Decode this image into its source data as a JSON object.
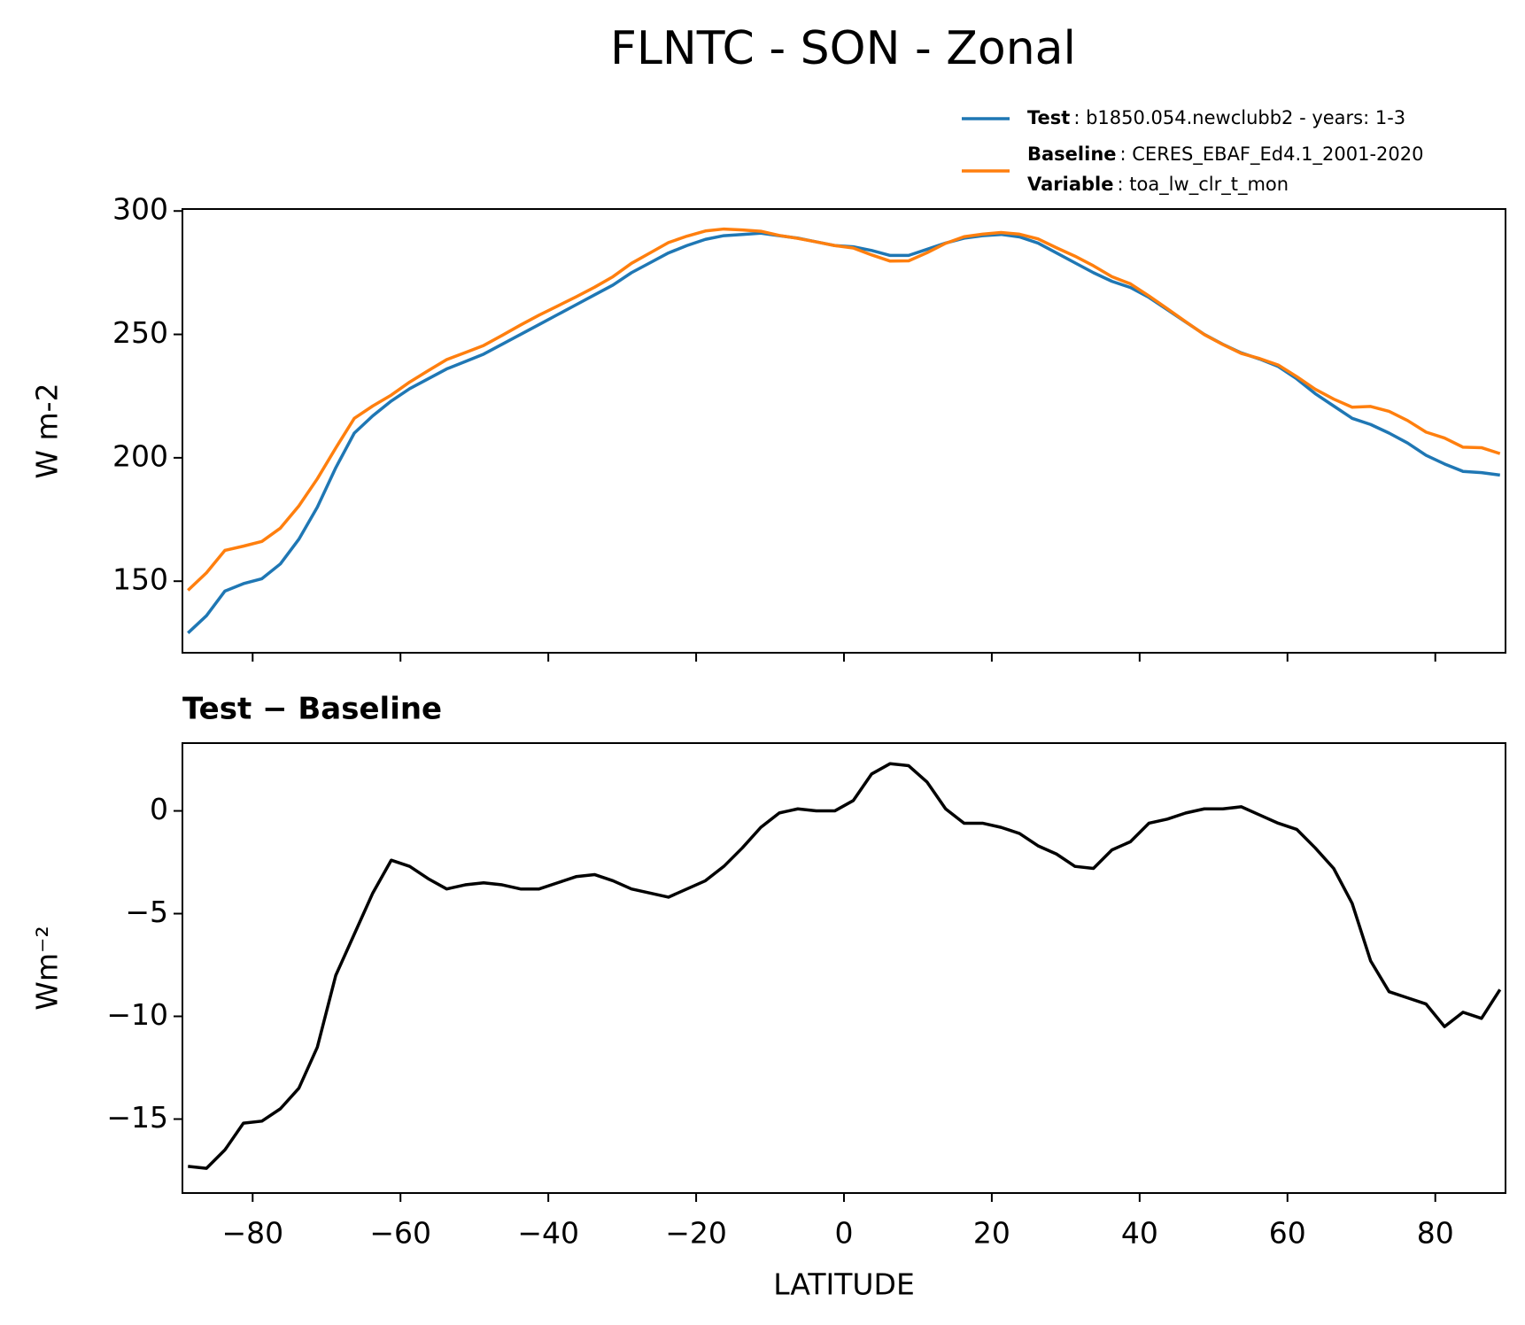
{
  "chart_data": [
    {
      "type": "line",
      "title": "FLNTC - SON - Zonal",
      "ylabel": "W m-2",
      "x": [
        -88.75,
        -86.25,
        -83.75,
        -81.25,
        -78.75,
        -76.25,
        -73.75,
        -71.25,
        -68.75,
        -66.25,
        -63.75,
        -61.25,
        -58.75,
        -56.25,
        -53.75,
        -51.25,
        -48.75,
        -46.25,
        -43.75,
        -41.25,
        -38.75,
        -36.25,
        -33.75,
        -31.25,
        -28.75,
        -26.25,
        -23.75,
        -21.25,
        -18.75,
        -16.25,
        -13.75,
        -11.25,
        -8.75,
        -6.25,
        -3.75,
        -1.25,
        1.25,
        3.75,
        6.25,
        8.75,
        11.25,
        13.75,
        16.25,
        18.75,
        21.25,
        23.75,
        26.25,
        28.75,
        31.25,
        33.75,
        36.25,
        38.75,
        41.25,
        43.75,
        46.25,
        48.75,
        51.25,
        53.75,
        56.25,
        58.75,
        61.25,
        63.75,
        66.25,
        68.75,
        71.25,
        73.75,
        76.25,
        78.75,
        81.25,
        83.75,
        86.25,
        88.75
      ],
      "series": [
        {
          "name": "Test",
          "description": ": b1850.054.newclubb2 - years: 1-3",
          "color": "#1f77b4",
          "values": [
            129,
            136,
            146,
            149,
            151,
            157,
            167,
            180,
            196,
            210,
            217,
            223,
            228,
            232,
            236,
            239,
            242,
            246,
            250,
            254,
            258,
            262,
            266,
            270,
            275,
            279,
            283,
            286,
            288.5,
            290,
            290.5,
            291,
            290,
            289,
            287.5,
            286,
            285.5,
            284,
            282,
            282,
            284.5,
            287,
            289,
            290,
            290.5,
            289.5,
            287,
            283,
            279,
            275,
            271.5,
            269,
            265,
            260,
            255,
            250,
            246,
            242.5,
            240,
            237,
            232,
            226,
            221,
            216,
            213.5,
            210,
            206,
            201,
            197.5,
            194.5,
            194,
            193
          ]
        },
        {
          "name": "Baseline",
          "description": ": CERES_EBAF_Ed4.1_2001-2020",
          "color": "#ff7f0e",
          "values": [
            146.3,
            153.4,
            162.5,
            164.2,
            166.1,
            171.5,
            180.5,
            191.5,
            204,
            216,
            221,
            225.4,
            230.7,
            235.3,
            239.8,
            242.6,
            245.5,
            249.6,
            253.8,
            257.8,
            261.5,
            265.2,
            269.1,
            273.4,
            278.8,
            283,
            287.2,
            289.8,
            291.9,
            292.7,
            292.3,
            291.8,
            290.1,
            288.9,
            287.5,
            286,
            285,
            282.2,
            279.7,
            279.8,
            283.1,
            286.9,
            289.6,
            290.6,
            291.3,
            290.6,
            288.7,
            285.1,
            281.7,
            277.8,
            273.4,
            270.5,
            265.6,
            260.4,
            255.1,
            249.9,
            245.9,
            242.3,
            240.2,
            237.6,
            232.9,
            227.8,
            223.8,
            220.5,
            220.8,
            218.8,
            215.1,
            210.4,
            208,
            204.3,
            204.1,
            201.7
          ]
        }
      ],
      "legend_note": {
        "name": "Variable",
        "description": ": toa_lw_clr_t_mon"
      },
      "legend": "upper right",
      "xlim": [
        -89.5,
        89.5
      ],
      "ylim": [
        121,
        300.8
      ],
      "xticks": [
        -80,
        -60,
        -40,
        -20,
        0,
        20,
        40,
        60,
        80
      ],
      "yticks": [
        150,
        200,
        250,
        300
      ]
    },
    {
      "type": "line",
      "title": "Test − Baseline",
      "xlabel": "LATITUDE",
      "ylabel": "Wm⁻²",
      "color": "#000000",
      "x": [
        -88.75,
        -86.25,
        -83.75,
        -81.25,
        -78.75,
        -76.25,
        -73.75,
        -71.25,
        -68.75,
        -66.25,
        -63.75,
        -61.25,
        -58.75,
        -56.25,
        -53.75,
        -51.25,
        -48.75,
        -46.25,
        -43.75,
        -41.25,
        -38.75,
        -36.25,
        -33.75,
        -31.25,
        -28.75,
        -26.25,
        -23.75,
        -21.25,
        -18.75,
        -16.25,
        -13.75,
        -11.25,
        -8.75,
        -6.25,
        -3.75,
        -1.25,
        1.25,
        3.75,
        6.25,
        8.75,
        11.25,
        13.75,
        16.25,
        18.75,
        21.25,
        23.75,
        26.25,
        28.75,
        31.25,
        33.75,
        36.25,
        38.75,
        41.25,
        43.75,
        46.25,
        48.75,
        51.25,
        53.75,
        56.25,
        58.75,
        61.25,
        63.75,
        66.25,
        68.75,
        71.25,
        73.75,
        76.25,
        78.75,
        81.25,
        83.75,
        86.25,
        88.75
      ],
      "values": [
        -17.3,
        -17.4,
        -16.5,
        -15.2,
        -15.1,
        -14.5,
        -13.5,
        -11.5,
        -8,
        -6,
        -4,
        -2.4,
        -2.7,
        -3.3,
        -3.8,
        -3.6,
        -3.5,
        -3.6,
        -3.8,
        -3.8,
        -3.5,
        -3.2,
        -3.1,
        -3.4,
        -3.8,
        -4,
        -4.2,
        -3.8,
        -3.4,
        -2.7,
        -1.8,
        -0.8,
        -0.1,
        0.1,
        0,
        0,
        0.5,
        1.8,
        2.3,
        2.2,
        1.4,
        0.1,
        -0.6,
        -0.6,
        -0.8,
        -1.1,
        -1.7,
        -2.1,
        -2.7,
        -2.8,
        -1.9,
        -1.5,
        -0.6,
        -0.4,
        -0.1,
        0.1,
        0.1,
        0.2,
        -0.2,
        -0.6,
        -0.9,
        -1.8,
        -2.8,
        -4.5,
        -7.3,
        -8.8,
        -9.1,
        -9.4,
        -10.5,
        -9.8,
        -10.1,
        -8.7
      ],
      "xlim": [
        -89.5,
        89.5
      ],
      "ylim": [
        -18.6,
        3.3
      ],
      "xticks": [
        {
          "value": -80,
          "label": "−80"
        },
        {
          "value": -60,
          "label": "−60"
        },
        {
          "value": -40,
          "label": "−40"
        },
        {
          "value": -20,
          "label": "−20"
        },
        0,
        20,
        40,
        60,
        80
      ],
      "yticks": [
        {
          "value": -15,
          "label": "−15"
        },
        {
          "value": -10,
          "label": "−10"
        },
        {
          "value": -5,
          "label": "−5"
        },
        0
      ]
    }
  ]
}
